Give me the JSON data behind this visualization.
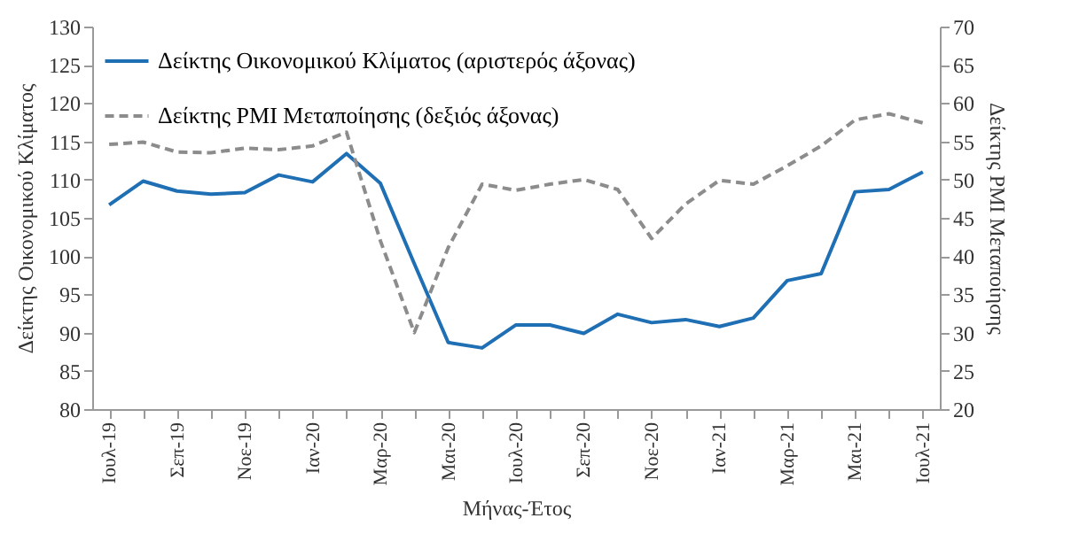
{
  "chart_data": {
    "type": "line",
    "xlabel": "Μήνας-Έτος",
    "ylabel": "Δείκτης Οικονομικού Κλίματος",
    "y2label": "Δείκτης PMI Μεταποίησης",
    "categories": [
      "Ιουλ-19",
      null,
      "Σεπ-19",
      null,
      "Νοε-19",
      null,
      "Ιαν-20",
      null,
      "Μαρ-20",
      null,
      "Μαι-20",
      null,
      "Ιουλ-20",
      null,
      "Σεπ-20",
      null,
      "Νοε-20",
      null,
      "Ιαν-21",
      null,
      "Μαρ-21",
      null,
      "Μαι-21",
      null,
      "Ιουλ-21"
    ],
    "series": [
      {
        "name": "Δείκτης Οικονομικού Κλίματος (αριστερός άξονας)",
        "color": "#1f6fb4",
        "line_style": "solid",
        "values": [
          106.7,
          109.8,
          108.5,
          108.1,
          108.3,
          110.6,
          109.7,
          113.4,
          109.5,
          99,
          88.7,
          88,
          91,
          91,
          89.9,
          92.4,
          91.3,
          91.7,
          90.8,
          91.9,
          96.8,
          97.7,
          108.4,
          108.7,
          111
        ]
      },
      {
        "name": "Δείκτης PMI Μεταποίησης (δεξιός άξονας)",
        "color": "#8c8c8c",
        "line_style": "dashed",
        "axis": "y2",
        "values": [
          54.6,
          54.9,
          53.6,
          53.5,
          54.1,
          53.9,
          54.4,
          56.2,
          42,
          30,
          41.1,
          49.4,
          48.6,
          49.4,
          50,
          48.7,
          42.3,
          46.8,
          49.9,
          49.4,
          51.8,
          54.4,
          57.8,
          58.6,
          57.4
        ]
      }
    ],
    "ylim": [
      80,
      130
    ],
    "yticks": [
      80,
      85,
      90,
      95,
      100,
      105,
      110,
      115,
      120,
      125,
      130
    ],
    "y2lim": [
      20,
      70
    ],
    "y2ticks": [
      20,
      25,
      30,
      35,
      40,
      45,
      50,
      55,
      60,
      65,
      70
    ],
    "grid": false,
    "legend": "top left",
    "marker": "none"
  }
}
